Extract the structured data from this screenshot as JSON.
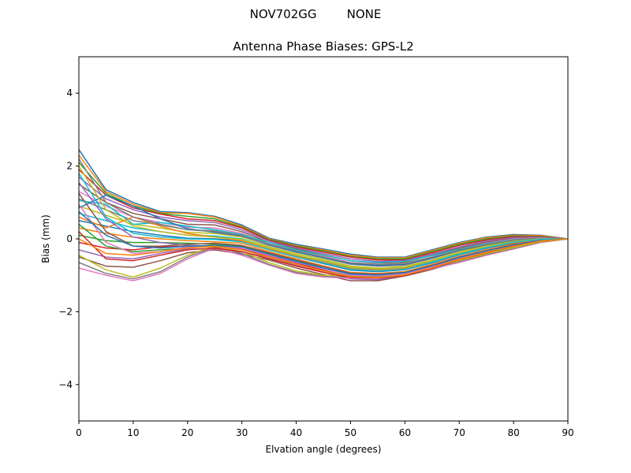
{
  "figure": {
    "suptitle": "NOV702GG        NONE"
  },
  "chart_data": {
    "type": "line",
    "title": "Antenna Phase Biases: GPS-L2",
    "xlabel": "Elvation angle (degrees)",
    "ylabel": "Bias (mm)",
    "xlim": [
      0,
      90
    ],
    "ylim": [
      -5,
      5
    ],
    "xticks": [
      0,
      10,
      20,
      30,
      40,
      50,
      60,
      70,
      80,
      90
    ],
    "xtick_labels": [
      "0",
      "10",
      "20",
      "30",
      "40",
      "50",
      "60",
      "70",
      "80",
      "90"
    ],
    "yticks": [
      -4,
      -2,
      0,
      2,
      4
    ],
    "ytick_labels": [
      "−4",
      "−2",
      "0",
      "2",
      "4"
    ],
    "grid": false,
    "legend": "none",
    "colors": [
      "#1f77b4",
      "#ff7f0e",
      "#2ca02c",
      "#d62728",
      "#9467bd",
      "#8c564b",
      "#e377c2",
      "#7f7f7f",
      "#bcbd22",
      "#17becf"
    ],
    "x": [
      0,
      5,
      10,
      15,
      20,
      25,
      30,
      35,
      40,
      45,
      50,
      55,
      60,
      65,
      70,
      75,
      80,
      85,
      90
    ],
    "series": [
      {
        "values": [
          2.45,
          1.35,
          1.0,
          0.75,
          0.72,
          0.62,
          0.38,
          0.02,
          -0.15,
          -0.28,
          -0.42,
          -0.5,
          -0.5,
          -0.3,
          -0.1,
          0.05,
          0.12,
          0.1,
          0.0
        ]
      },
      {
        "values": [
          2.3,
          1.3,
          0.95,
          0.72,
          0.7,
          0.6,
          0.35,
          0.0,
          -0.18,
          -0.3,
          -0.45,
          -0.52,
          -0.52,
          -0.32,
          -0.12,
          0.03,
          0.1,
          0.09,
          0.0
        ]
      },
      {
        "values": [
          2.1,
          1.25,
          0.9,
          0.7,
          0.62,
          0.55,
          0.32,
          -0.02,
          -0.2,
          -0.33,
          -0.48,
          -0.55,
          -0.55,
          -0.35,
          -0.15,
          0.0,
          0.08,
          0.07,
          0.0
        ]
      },
      {
        "values": [
          1.9,
          1.2,
          0.85,
          0.68,
          0.55,
          0.5,
          0.3,
          -0.04,
          -0.22,
          -0.36,
          -0.5,
          -0.58,
          -0.58,
          -0.38,
          -0.18,
          -0.03,
          0.06,
          0.06,
          0.0
        ]
      },
      {
        "values": [
          1.7,
          1.1,
          0.8,
          0.6,
          0.5,
          0.45,
          0.25,
          -0.06,
          -0.25,
          -0.4,
          -0.55,
          -0.62,
          -0.6,
          -0.42,
          -0.22,
          -0.06,
          0.04,
          0.05,
          0.0
        ]
      },
      {
        "values": [
          1.5,
          1.0,
          0.7,
          0.55,
          0.4,
          0.38,
          0.2,
          -0.1,
          -0.28,
          -0.44,
          -0.6,
          -0.66,
          -0.64,
          -0.45,
          -0.25,
          -0.09,
          0.02,
          0.04,
          0.0
        ]
      },
      {
        "values": [
          1.3,
          0.9,
          0.6,
          0.45,
          0.32,
          0.3,
          0.15,
          -0.14,
          -0.32,
          -0.48,
          -0.65,
          -0.7,
          -0.68,
          -0.5,
          -0.28,
          -0.12,
          0.0,
          0.03,
          0.0
        ]
      },
      {
        "values": [
          1.1,
          0.8,
          0.5,
          0.38,
          0.25,
          0.22,
          0.1,
          -0.18,
          -0.36,
          -0.52,
          -0.7,
          -0.75,
          -0.72,
          -0.54,
          -0.32,
          -0.15,
          -0.02,
          0.02,
          0.0
        ]
      },
      {
        "values": [
          0.9,
          0.65,
          0.4,
          0.3,
          0.18,
          0.15,
          0.05,
          -0.22,
          -0.4,
          -0.56,
          -0.75,
          -0.8,
          -0.76,
          -0.58,
          -0.36,
          -0.18,
          -0.05,
          0.01,
          0.0
        ]
      },
      {
        "values": [
          0.7,
          0.5,
          0.3,
          0.2,
          0.1,
          0.08,
          0.0,
          -0.26,
          -0.45,
          -0.62,
          -0.8,
          -0.85,
          -0.8,
          -0.62,
          -0.4,
          -0.22,
          -0.08,
          0.0,
          0.0
        ]
      },
      {
        "values": [
          0.5,
          0.35,
          0.2,
          0.1,
          0.02,
          0.0,
          -0.06,
          -0.3,
          -0.5,
          -0.68,
          -0.86,
          -0.9,
          -0.85,
          -0.66,
          -0.44,
          -0.26,
          -0.11,
          -0.02,
          0.0
        ]
      },
      {
        "values": [
          0.3,
          0.15,
          0.05,
          0.0,
          -0.05,
          -0.08,
          -0.12,
          -0.35,
          -0.55,
          -0.74,
          -0.92,
          -0.95,
          -0.9,
          -0.7,
          -0.48,
          -0.3,
          -0.14,
          -0.03,
          0.0
        ]
      },
      {
        "values": [
          0.1,
          -0.05,
          -0.1,
          -0.1,
          -0.12,
          -0.15,
          -0.2,
          -0.4,
          -0.6,
          -0.8,
          -0.98,
          -1.0,
          -0.95,
          -0.75,
          -0.52,
          -0.34,
          -0.17,
          -0.05,
          0.0
        ]
      },
      {
        "values": [
          -0.1,
          -0.25,
          -0.3,
          -0.22,
          -0.2,
          -0.22,
          -0.28,
          -0.46,
          -0.66,
          -0.86,
          -1.04,
          -1.06,
          -1.0,
          -0.8,
          -0.56,
          -0.37,
          -0.2,
          -0.06,
          0.0
        ]
      },
      {
        "values": [
          -0.3,
          -0.5,
          -0.55,
          -0.4,
          -0.28,
          -0.28,
          -0.36,
          -0.52,
          -0.72,
          -0.92,
          -1.1,
          -1.12,
          -1.0,
          -0.82,
          -0.6,
          -0.4,
          -0.22,
          -0.07,
          0.0
        ]
      },
      {
        "values": [
          -0.5,
          -0.75,
          -0.78,
          -0.6,
          -0.38,
          -0.3,
          -0.42,
          -0.58,
          -0.8,
          -0.98,
          -1.15,
          -1.15,
          -1.02,
          -0.84,
          -0.62,
          -0.42,
          -0.24,
          -0.08,
          0.0
        ]
      },
      {
        "values": [
          -0.8,
          -1.0,
          -1.15,
          -0.95,
          -0.55,
          -0.25,
          -0.45,
          -0.72,
          -0.95,
          -1.05,
          -1.08,
          -1.05,
          -0.98,
          -0.82,
          -0.65,
          -0.45,
          -0.28,
          -0.1,
          0.0
        ]
      },
      {
        "values": [
          -0.65,
          -0.95,
          -1.1,
          -0.9,
          -0.5,
          -0.22,
          -0.4,
          -0.7,
          -0.92,
          -1.02,
          -1.05,
          -1.02,
          -0.95,
          -0.8,
          -0.62,
          -0.43,
          -0.26,
          -0.09,
          0.0
        ]
      },
      {
        "values": [
          -0.45,
          -0.85,
          -1.05,
          -0.8,
          -0.45,
          -0.2,
          -0.35,
          -0.65,
          -0.88,
          -1.0,
          -1.02,
          -1.0,
          -0.92,
          -0.78,
          -0.6,
          -0.41,
          -0.24,
          -0.08,
          0.0
        ]
      },
      {
        "values": [
          1.05,
          0.95,
          0.4,
          0.45,
          0.35,
          0.25,
          0.12,
          -0.1,
          -0.3,
          -0.45,
          -0.6,
          -0.65,
          -0.62,
          -0.46,
          -0.28,
          -0.13,
          -0.02,
          0.02,
          0.0
        ]
      },
      {
        "values": [
          0.85,
          1.2,
          0.9,
          0.55,
          0.28,
          0.18,
          0.08,
          -0.16,
          -0.36,
          -0.52,
          -0.68,
          -0.73,
          -0.7,
          -0.52,
          -0.32,
          -0.16,
          -0.04,
          0.01,
          0.0
        ]
      },
      {
        "values": [
          0.6,
          0.3,
          0.6,
          0.35,
          0.15,
          0.05,
          -0.05,
          -0.28,
          -0.48,
          -0.64,
          -0.82,
          -0.86,
          -0.82,
          -0.64,
          -0.42,
          -0.24,
          -0.1,
          -0.01,
          0.0
        ]
      },
      {
        "values": [
          0.4,
          -0.2,
          -0.35,
          -0.3,
          -0.25,
          -0.2,
          -0.3,
          -0.5,
          -0.7,
          -0.88,
          -1.02,
          -1.04,
          -0.98,
          -0.78,
          -0.55,
          -0.36,
          -0.19,
          -0.06,
          0.0
        ]
      },
      {
        "values": [
          0.2,
          -0.55,
          -0.6,
          -0.45,
          -0.3,
          -0.25,
          -0.35,
          -0.55,
          -0.75,
          -0.92,
          -1.06,
          -1.08,
          -1.0,
          -0.8,
          -0.57,
          -0.38,
          -0.2,
          -0.06,
          0.0
        ]
      },
      {
        "values": [
          1.55,
          0.55,
          0.05,
          -0.1,
          -0.18,
          -0.2,
          -0.26,
          -0.45,
          -0.64,
          -0.82,
          -0.98,
          -1.0,
          -0.95,
          -0.76,
          -0.53,
          -0.35,
          -0.18,
          -0.05,
          0.0
        ]
      },
      {
        "values": [
          1.25,
          0.2,
          -0.2,
          -0.2,
          -0.15,
          -0.12,
          -0.18,
          -0.38,
          -0.58,
          -0.76,
          -0.94,
          -0.97,
          -0.92,
          -0.73,
          -0.5,
          -0.32,
          -0.16,
          -0.04,
          0.0
        ]
      },
      {
        "values": [
          0.95,
          -0.1,
          -0.4,
          -0.35,
          -0.22,
          -0.18,
          -0.25,
          -0.44,
          -0.64,
          -0.82,
          -1.0,
          -1.02,
          -0.96,
          -0.77,
          -0.54,
          -0.35,
          -0.18,
          -0.05,
          0.0
        ]
      },
      {
        "values": [
          2.2,
          1.0,
          0.6,
          0.4,
          0.25,
          0.2,
          0.1,
          -0.15,
          -0.33,
          -0.5,
          -0.66,
          -0.7,
          -0.68,
          -0.5,
          -0.3,
          -0.15,
          -0.03,
          0.02,
          0.0
        ]
      },
      {
        "values": [
          2.0,
          0.8,
          0.35,
          0.2,
          0.1,
          0.05,
          -0.02,
          -0.25,
          -0.44,
          -0.6,
          -0.78,
          -0.82,
          -0.78,
          -0.6,
          -0.38,
          -0.21,
          -0.07,
          0.0,
          0.0
        ]
      },
      {
        "values": [
          1.8,
          0.6,
          0.15,
          0.05,
          0.0,
          -0.02,
          -0.08,
          -0.3,
          -0.5,
          -0.66,
          -0.84,
          -0.88,
          -0.84,
          -0.64,
          -0.42,
          -0.24,
          -0.09,
          -0.01,
          0.0
        ]
      },
      {
        "values": [
          0.75,
          0.1,
          -0.2,
          -0.25,
          -0.2,
          -0.18,
          -0.22,
          -0.42,
          -0.62,
          -0.8,
          -0.96,
          -0.99,
          -0.93,
          -0.74,
          -0.51,
          -0.33,
          -0.17,
          -0.05,
          0.0
        ]
      },
      {
        "values": [
          0.0,
          -0.4,
          -0.45,
          -0.35,
          -0.25,
          -0.2,
          -0.3,
          -0.5,
          -0.7,
          -0.88,
          -1.04,
          -1.06,
          -0.99,
          -0.79,
          -0.56,
          -0.37,
          -0.2,
          -0.06,
          0.0
        ]
      }
    ]
  }
}
